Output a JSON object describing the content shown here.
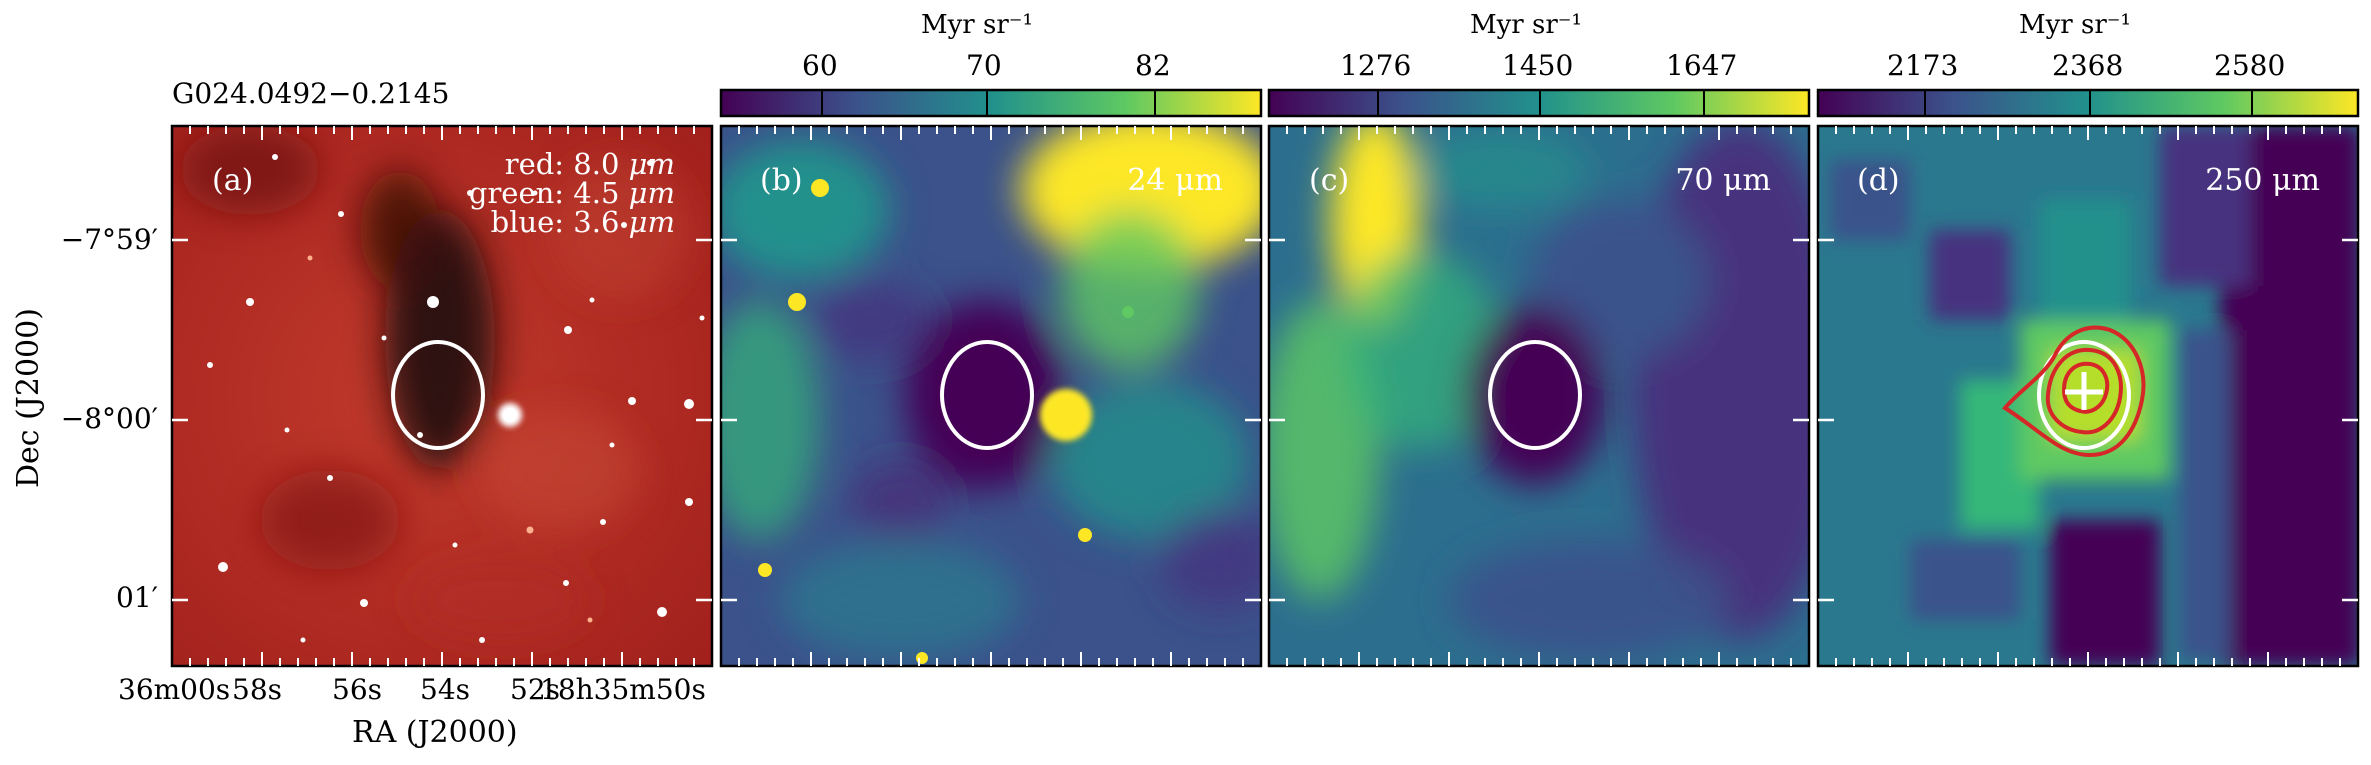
{
  "source_name": "G024.0492−0.2145",
  "axes": {
    "ylabel": "Dec (J2000)",
    "xlabel": "RA (J2000)",
    "y_ticks": [
      "−7°59′",
      "−8°00′",
      "01′"
    ],
    "x_ticks": [
      "36m00s",
      "58s",
      "56s",
      "54s",
      "52s",
      "18h35m50s"
    ]
  },
  "panels": [
    {
      "id": "a",
      "tag": "(a)",
      "band_lines": [
        {
          "label": "red:",
          "value": "8.0",
          "unit": "μm"
        },
        {
          "label": "green:",
          "value": "4.5",
          "unit": "μm"
        },
        {
          "label": "blue:",
          "value": "3.6",
          "unit": "μm"
        }
      ],
      "image_description": "three-colour composite: red=8.0μm, green=4.5μm, blue=3.6μm"
    },
    {
      "id": "b",
      "tag": "(b)",
      "band": "24 μm",
      "colorbar": {
        "unit": "Myr sr⁻¹",
        "ticks": [
          "60",
          "70",
          "82"
        ]
      }
    },
    {
      "id": "c",
      "tag": "(c)",
      "band": "70 μm",
      "colorbar": {
        "unit": "Myr sr⁻¹",
        "ticks": [
          "1276",
          "1450",
          "1647"
        ]
      }
    },
    {
      "id": "d",
      "tag": "(d)",
      "band": "250 μm",
      "colorbar": {
        "unit": "Myr sr⁻¹",
        "ticks": [
          "2173",
          "2368",
          "2580"
        ]
      }
    }
  ],
  "colors": {
    "viridis": [
      "#440154",
      "#3b528b",
      "#21918c",
      "#5ec962",
      "#fde725"
    ],
    "aperture": "#ffffff",
    "contour": "#d62728",
    "composite_red": "#b22222"
  },
  "icons": [
    "ellipse-aperture",
    "plus-marker",
    "star-sources"
  ]
}
